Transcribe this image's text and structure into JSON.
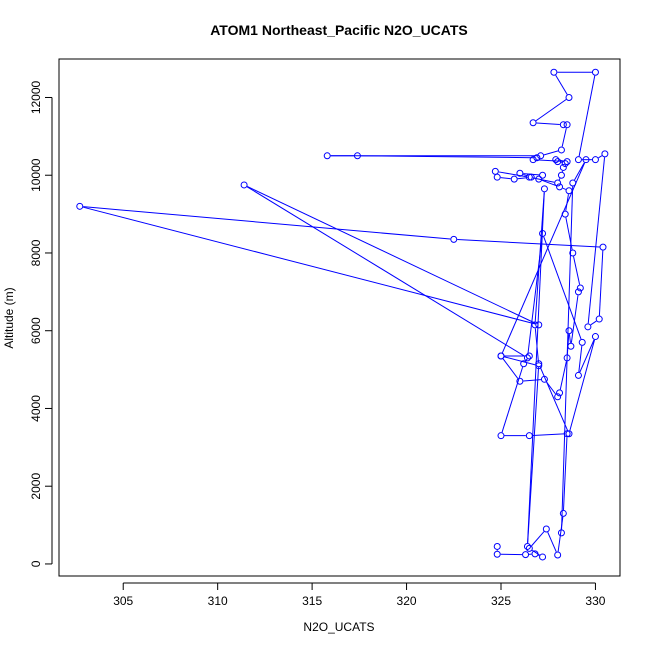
{
  "chart_data": {
    "type": "line",
    "title": "ATOM1 Northeast_Pacific N2O_UCATS",
    "xlabel": "N2O_UCATS",
    "ylabel": "Altitude (m)",
    "xlim": [
      301.6,
      331.3
    ],
    "ylim": [
      -310,
      12990
    ],
    "x_ticks": [
      305,
      310,
      315,
      320,
      325,
      330
    ],
    "y_ticks": [
      0,
      2000,
      4000,
      6000,
      8000,
      10000,
      12000
    ],
    "x_tick_labels": [
      "305",
      "310",
      "315",
      "320",
      "325",
      "330"
    ],
    "y_tick_labels": [
      "0",
      "2000",
      "4000",
      "6000",
      "8000",
      "10000",
      "12000"
    ],
    "grid": false,
    "series": [
      {
        "color": "#0000ff",
        "marker": "open-circle",
        "points": [
          [
            324.8,
            450
          ],
          [
            324.8,
            250
          ],
          [
            326.3,
            240
          ],
          [
            326.8,
            260
          ],
          [
            327.2,
            180
          ],
          [
            326.5,
            400
          ],
          [
            327.4,
            900
          ],
          [
            328.0,
            230
          ],
          [
            328.3,
            1300
          ],
          [
            328.5,
            3350
          ],
          [
            326.5,
            3300
          ],
          [
            325.0,
            3300
          ],
          [
            326.2,
            5150
          ],
          [
            326.5,
            5350
          ],
          [
            325.0,
            5350
          ],
          [
            326.0,
            4700
          ],
          [
            327.3,
            4750
          ],
          [
            328.0,
            4300
          ],
          [
            328.1,
            4400
          ],
          [
            328.5,
            5300
          ],
          [
            328.6,
            6000
          ],
          [
            328.7,
            5600
          ],
          [
            329.1,
            7000
          ],
          [
            329.2,
            7100
          ],
          [
            328.8,
            8000
          ],
          [
            328.4,
            9000
          ],
          [
            328.6,
            9600
          ],
          [
            328.1,
            9700
          ],
          [
            327.0,
            9900
          ],
          [
            327.2,
            10000
          ],
          [
            326.0,
            10050
          ],
          [
            326.6,
            9950
          ],
          [
            325.7,
            9900
          ],
          [
            324.8,
            9950
          ],
          [
            324.7,
            10100
          ],
          [
            326.5,
            9950
          ],
          [
            328.0,
            9800
          ],
          [
            328.2,
            10000
          ],
          [
            328.3,
            10200
          ],
          [
            328.4,
            10300
          ],
          [
            328.0,
            10350
          ],
          [
            327.9,
            10400
          ],
          [
            328.5,
            10350
          ],
          [
            326.7,
            10400
          ],
          [
            326.9,
            10450
          ],
          [
            317.4,
            10500
          ],
          [
            315.8,
            10500
          ],
          [
            327.1,
            10500
          ],
          [
            328.2,
            10650
          ],
          [
            328.5,
            11300
          ],
          [
            328.3,
            11300
          ],
          [
            326.7,
            11350
          ],
          [
            328.6,
            12000
          ],
          [
            327.8,
            12650
          ],
          [
            330.0,
            12650
          ],
          [
            329.1,
            10400
          ],
          [
            330.0,
            10400
          ],
          [
            330.5,
            10550
          ],
          [
            329.6,
            6100
          ],
          [
            330.2,
            6300
          ],
          [
            330.4,
            8150
          ],
          [
            322.5,
            8350
          ],
          [
            302.7,
            9200
          ],
          [
            327.0,
            6150
          ],
          [
            311.4,
            9750
          ],
          [
            326.4,
            5300
          ],
          [
            327.2,
            8500
          ],
          [
            329.3,
            5700
          ],
          [
            329.1,
            4850
          ],
          [
            330.0,
            5850
          ],
          [
            328.6,
            3350
          ],
          [
            327.0,
            5150
          ],
          [
            326.4,
            450
          ],
          [
            327.3,
            9650
          ],
          [
            326.8,
            6150
          ],
          [
            327.0,
            5100
          ],
          [
            325.0,
            5350
          ],
          [
            329.5,
            10400
          ],
          [
            328.8,
            9800
          ],
          [
            328.2,
            800
          ]
        ]
      }
    ]
  }
}
